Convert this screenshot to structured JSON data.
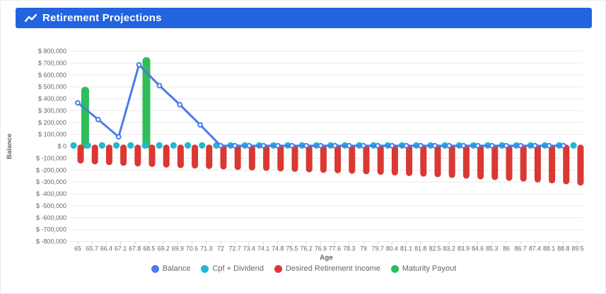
{
  "header": {
    "title": "Retirement Projections",
    "icon": "trend-line-icon",
    "bg_color": "#2263e0",
    "text_color": "#ffffff"
  },
  "chart_data": {
    "type": "mixed",
    "title": "Retirement Projections",
    "xlabel": "Age",
    "ylabel": "Balance",
    "legend_position": "bottom",
    "grid": "horizontal-only",
    "axis_text_color": "#666666",
    "grid_color": "#e9e9e9",
    "x_categories": [
      "65",
      "65.7",
      "66.4",
      "67.1",
      "67.8",
      "68.5",
      "69.2",
      "69.9",
      "70.6",
      "71.3",
      "72",
      "72.7",
      "73.4",
      "74.1",
      "74.8",
      "75.5",
      "76.2",
      "76.9",
      "77.6",
      "78.3",
      "79",
      "79.7",
      "80.4",
      "81.1",
      "81.8",
      "82.5",
      "83.2",
      "83.9",
      "84.6",
      "85.3",
      "86",
      "86.7",
      "87.4",
      "88.1",
      "88.8",
      "89.5"
    ],
    "x_category_values": [
      65,
      65.7,
      66.4,
      67.1,
      67.8,
      68.5,
      69.2,
      69.9,
      70.6,
      71.3,
      72,
      72.7,
      73.4,
      74.1,
      74.8,
      75.5,
      76.2,
      76.9,
      77.6,
      78.3,
      79,
      79.7,
      80.4,
      81.1,
      81.8,
      82.5,
      83.2,
      83.9,
      84.6,
      85.3,
      86,
      86.7,
      87.4,
      88.1,
      88.8,
      89.5
    ],
    "ylim": [
      -800000,
      800000
    ],
    "y_ticks": [
      800000,
      700000,
      600000,
      500000,
      400000,
      300000,
      200000,
      100000,
      0,
      -100000,
      -200000,
      -300000,
      -400000,
      -500000,
      -600000,
      -700000,
      -800000
    ],
    "y_tick_labels": [
      "$ 800,000",
      "$ 700,000",
      "$ 600,000",
      "$ 500,000",
      "$ 400,000",
      "$ 300,000",
      "$ 200,000",
      "$ 100,000",
      "$ 0",
      "$ -100,000",
      "$ -200,000",
      "$ -300,000",
      "$ -400,000",
      "$ -500,000",
      "$ -600,000",
      "$ -700,000",
      "$ -800,000"
    ],
    "series": [
      {
        "name": "Balance",
        "type": "line",
        "color": "#4a7be8",
        "points": [
          {
            "x": 65,
            "y": 365000
          },
          {
            "x": 66,
            "y": 225000
          },
          {
            "x": 67,
            "y": 80000
          },
          {
            "x": 68,
            "y": 685000
          },
          {
            "x": 69,
            "y": 510000
          },
          {
            "x": 70,
            "y": 350000
          },
          {
            "x": 71,
            "y": 180000
          },
          {
            "x": 72,
            "y": 5000
          },
          {
            "x": 72.7,
            "y": 5000
          },
          {
            "x": 73.4,
            "y": 5000
          },
          {
            "x": 74.1,
            "y": 5000
          },
          {
            "x": 74.8,
            "y": 5000
          },
          {
            "x": 75.5,
            "y": 5000
          },
          {
            "x": 76.2,
            "y": 5000
          },
          {
            "x": 76.9,
            "y": 5000
          },
          {
            "x": 77.6,
            "y": 5000
          },
          {
            "x": 78.3,
            "y": 5000
          },
          {
            "x": 79,
            "y": 5000
          },
          {
            "x": 79.7,
            "y": 5000
          },
          {
            "x": 80.4,
            "y": 5000
          },
          {
            "x": 81.1,
            "y": 5000
          },
          {
            "x": 81.8,
            "y": 5000
          },
          {
            "x": 82.5,
            "y": 5000
          },
          {
            "x": 83.2,
            "y": 5000
          },
          {
            "x": 83.9,
            "y": 5000
          },
          {
            "x": 84.6,
            "y": 5000
          },
          {
            "x": 85.3,
            "y": 5000
          },
          {
            "x": 86,
            "y": 5000
          },
          {
            "x": 86.7,
            "y": 5000
          },
          {
            "x": 87.4,
            "y": 5000
          },
          {
            "x": 88.1,
            "y": 5000
          },
          {
            "x": 88.8,
            "y": 5000
          }
        ]
      },
      {
        "name": "Cpf + Dividend",
        "type": "bar",
        "color": "#23b7d4",
        "values": [
          35000,
          35000,
          35000,
          35000,
          35000,
          35000,
          35000,
          35000,
          35000,
          35000,
          35000,
          35000,
          35000,
          35000,
          35000,
          35000,
          35000,
          35000,
          35000,
          35000,
          35000,
          35000,
          35000,
          35000,
          35000,
          35000,
          35000,
          35000,
          35000,
          35000,
          35000,
          35000,
          35000,
          35000,
          35000,
          35000
        ]
      },
      {
        "name": "Desired Retirement Income",
        "type": "bar",
        "color": "#da3832",
        "values": [
          -145000,
          -152000,
          -158000,
          -164000,
          -169000,
          -174000,
          -179000,
          -183000,
          -187000,
          -191000,
          -195000,
          -199000,
          -203000,
          -207000,
          -211000,
          -215000,
          -219000,
          -223000,
          -227000,
          -231000,
          -235000,
          -240000,
          -245000,
          -250000,
          -255000,
          -260000,
          -266000,
          -272000,
          -278000,
          -284000,
          -290000,
          -297000,
          -304000,
          -312000,
          -320000,
          -330000
        ]
      },
      {
        "name": "Maturity Payout",
        "type": "bar",
        "color": "#2ebd59",
        "points": [
          {
            "x": 65.5,
            "y": 500000
          },
          {
            "x": 68.5,
            "y": 750000
          }
        ]
      }
    ]
  }
}
